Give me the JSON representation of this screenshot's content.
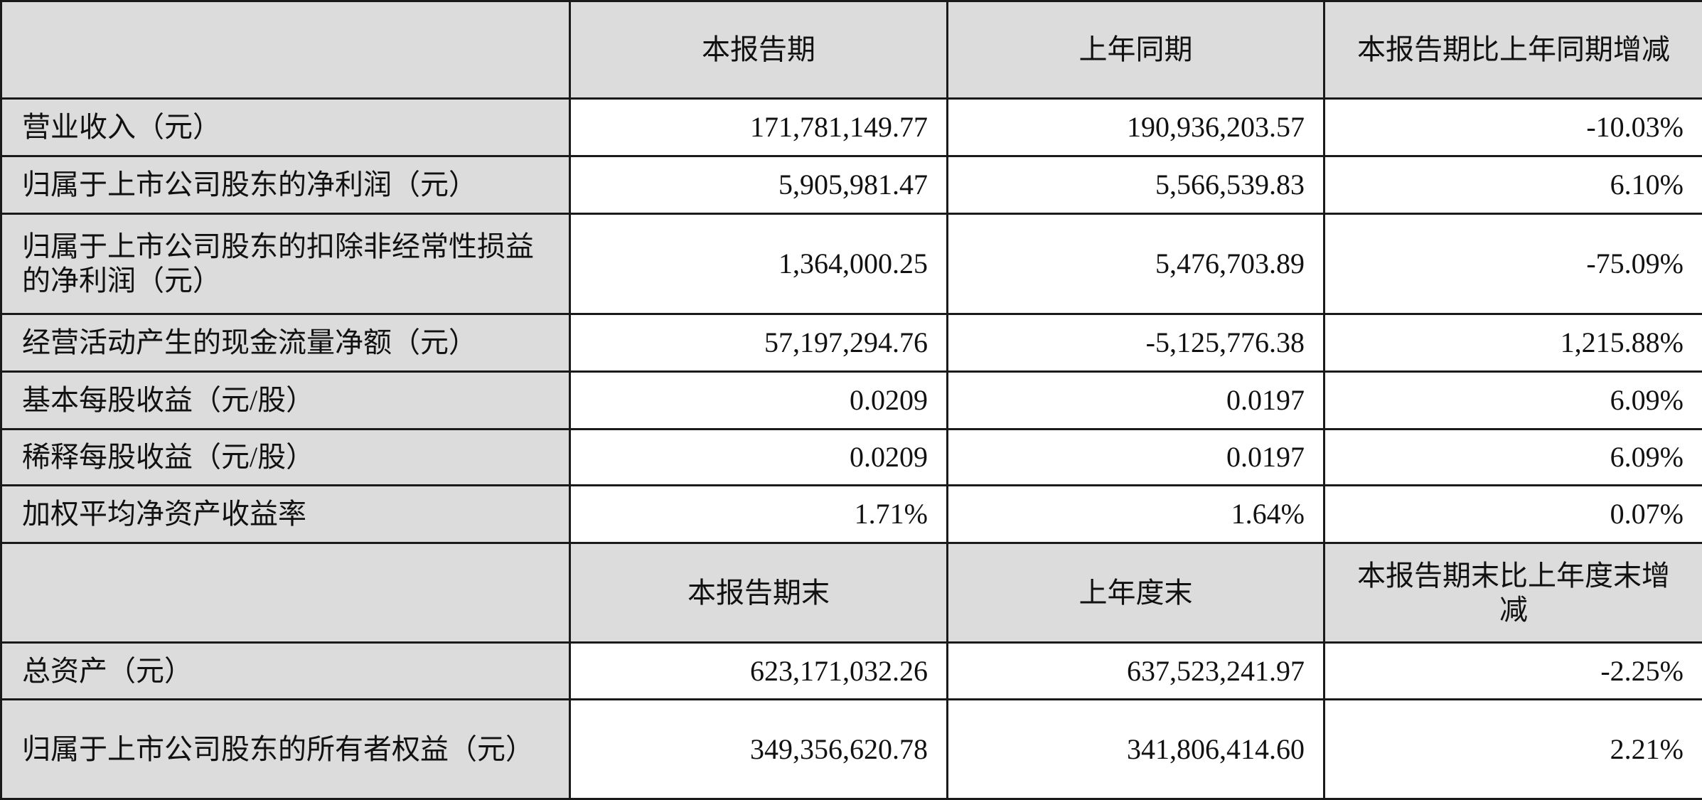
{
  "header1": [
    "",
    "本报告期",
    "上年同期",
    "本报告期比上年同期增减"
  ],
  "rows1": [
    {
      "label": "营业收入（元）",
      "current": "171,781,149.77",
      "prior": "190,936,203.57",
      "change": "-10.03%"
    },
    {
      "label": "归属于上市公司股东的净利润（元）",
      "current": "5,905,981.47",
      "prior": "5,566,539.83",
      "change": "6.10%"
    },
    {
      "label": "归属于上市公司股东的扣除非经常性损益的净利润（元）",
      "current": "1,364,000.25",
      "prior": "5,476,703.89",
      "change": "-75.09%"
    },
    {
      "label": "经营活动产生的现金流量净额（元）",
      "current": "57,197,294.76",
      "prior": "-5,125,776.38",
      "change": "1,215.88%"
    },
    {
      "label": "基本每股收益（元/股）",
      "current": "0.0209",
      "prior": "0.0197",
      "change": "6.09%"
    },
    {
      "label": "稀释每股收益（元/股）",
      "current": "0.0209",
      "prior": "0.0197",
      "change": "6.09%"
    },
    {
      "label": "加权平均净资产收益率",
      "current": "1.71%",
      "prior": "1.64%",
      "change": "0.07%"
    }
  ],
  "header2": [
    "",
    "本报告期末",
    "上年度末",
    "本报告期末比上年度末增减"
  ],
  "rows2": [
    {
      "label": "总资产（元）",
      "current": "623,171,032.26",
      "prior": "637,523,241.97",
      "change": "-2.25%"
    },
    {
      "label": "归属于上市公司股东的所有者权益（元）",
      "current": "349,356,620.78",
      "prior": "341,806,414.60",
      "change": "2.21%"
    }
  ]
}
